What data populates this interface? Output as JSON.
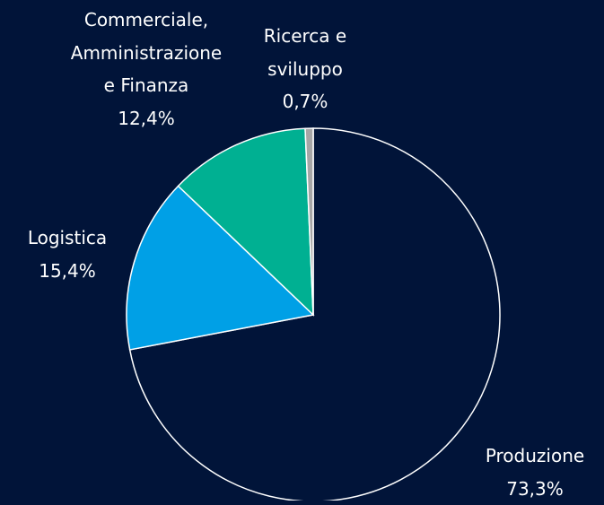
{
  "chart_data": {
    "type": "pie",
    "categories": [
      "Produzione",
      "Logistica",
      "Commerciale, Amministrazione e Finanza",
      "Ricerca e sviluppo"
    ],
    "values": [
      73.3,
      15.4,
      12.4,
      0.7
    ],
    "value_labels": [
      "73,3%",
      "15,4%",
      "12,4%",
      "0,7%"
    ],
    "colors": [
      "#011439",
      "#00a0e6",
      "#00b092",
      "#a6a6a6"
    ]
  }
}
